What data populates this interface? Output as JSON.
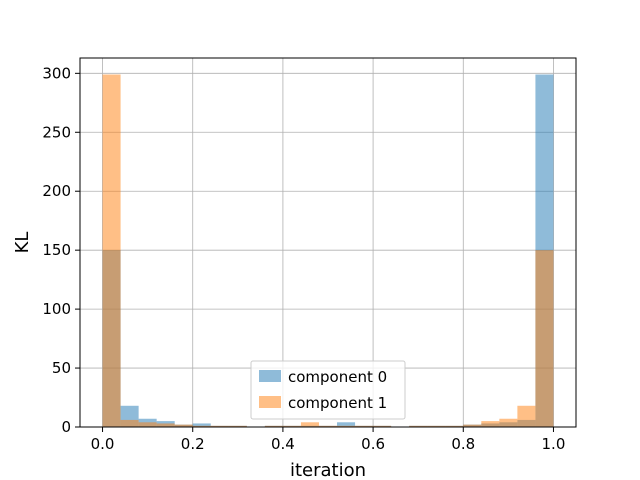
{
  "chart_data": {
    "type": "bar",
    "title": "",
    "xlabel": "iteration",
    "ylabel": "KL",
    "xlim": [
      -0.05,
      1.05
    ],
    "ylim": [
      0,
      313
    ],
    "xticks": [
      "0.0",
      "0.2",
      "0.4",
      "0.6",
      "0.8",
      "1.0"
    ],
    "yticks": [
      "0",
      "50",
      "100",
      "150",
      "200",
      "250",
      "300"
    ],
    "grid": true,
    "legend": "lower-center",
    "bin_width": 0.04,
    "x": [
      0.0,
      0.04,
      0.08,
      0.12,
      0.16,
      0.2,
      0.24,
      0.28,
      0.32,
      0.36,
      0.4,
      0.44,
      0.48,
      0.52,
      0.56,
      0.6,
      0.64,
      0.68,
      0.72,
      0.76,
      0.8,
      0.84,
      0.88,
      0.92,
      0.96
    ],
    "series": [
      {
        "name": "component 0",
        "color": "#1f77b4",
        "values": [
          150,
          18,
          7,
          5,
          2,
          3,
          1,
          1,
          0,
          1,
          1,
          1,
          1,
          4,
          1,
          1,
          0,
          1,
          1,
          1,
          2,
          3,
          4,
          6,
          299
        ]
      },
      {
        "name": "component 1",
        "color": "#ff7f0e",
        "values": [
          299,
          6,
          4,
          3,
          2,
          1,
          1,
          1,
          0,
          1,
          1,
          4,
          1,
          1,
          1,
          1,
          0,
          1,
          1,
          1,
          2,
          5,
          7,
          18,
          150
        ]
      }
    ]
  }
}
